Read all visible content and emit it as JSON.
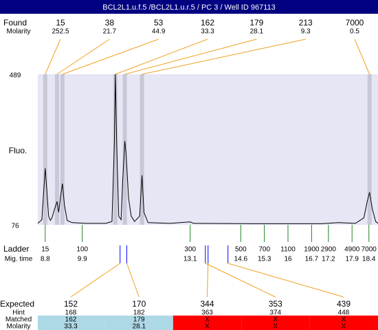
{
  "title": "BCL2L1.u.f.5 /BCL2L1.u.r.5 / PC 3 / Well ID 967113",
  "found": {
    "label": "Found",
    "molarity_label": "Molarity",
    "peaks": [
      {
        "size": 15,
        "molarity": 252.5,
        "time": 8.8
      },
      {
        "size": 38,
        "molarity": 21.7,
        "time": 9.15
      },
      {
        "size": 53,
        "molarity": 44.9,
        "time": 9.31
      },
      {
        "size": 162,
        "molarity": 33.3,
        "time": 10.88
      },
      {
        "size": 179,
        "molarity": 28.1,
        "time": 11.16
      },
      {
        "size": 213,
        "molarity": 9.3,
        "time": 11.67
      },
      {
        "size": 7000,
        "molarity": 0.5,
        "time": 18.42
      }
    ]
  },
  "chart_data": {
    "type": "line",
    "y_label": "Fluo.",
    "color": "#000000",
    "background": "#e6e6f5",
    "ylim": [
      76,
      489
    ],
    "yticks": [
      489,
      76
    ],
    "xlim": [
      8.58,
      18.67
    ],
    "x": [
      8.58,
      8.7,
      8.75,
      8.8,
      8.85,
      8.9,
      8.95,
      9.0,
      9.08,
      9.15,
      9.2,
      9.25,
      9.31,
      9.37,
      9.45,
      9.6,
      10.0,
      10.6,
      10.78,
      10.85,
      10.88,
      10.92,
      10.98,
      11.05,
      11.1,
      11.16,
      11.2,
      11.27,
      11.35,
      11.45,
      11.6,
      11.67,
      11.73,
      11.85,
      12.5,
      13.1,
      13.2,
      15,
      17,
      17.5,
      18.0,
      18.25,
      18.35,
      18.42,
      18.5,
      18.6,
      18.67
    ],
    "values": [
      80,
      90,
      160,
      231,
      170,
      100,
      88,
      95,
      120,
      140,
      110,
      150,
      189,
      130,
      88,
      82,
      80,
      80,
      85,
      300,
      489,
      300,
      100,
      90,
      200,
      306,
      270,
      150,
      100,
      85,
      100,
      212,
      110,
      82,
      80,
      84,
      80,
      79,
      79,
      82,
      80,
      95,
      140,
      165,
      120,
      85,
      80
    ]
  },
  "ladder": {
    "label": "Ladder",
    "time_label": "Mig. time",
    "sizes": [
      15,
      100,
      300,
      500,
      700,
      1100,
      1900,
      2900,
      4900,
      7000
    ],
    "times": [
      8.8,
      9.9,
      13.1,
      14.6,
      15.3,
      16,
      16.7,
      17.2,
      17.9,
      18.4
    ]
  },
  "expected": {
    "label": "Expected",
    "hint_label": "Hint",
    "matched_label": "Matched",
    "molarity_label": "Molarity",
    "matched_color": "#add8e6",
    "unmatched_color": "#ff0000",
    "items": [
      {
        "size": 152,
        "hint": 168,
        "matched": 162,
        "molarity": 33.3,
        "time": 11.02
      },
      {
        "size": 170,
        "hint": 182,
        "matched": 179,
        "molarity": 28.1,
        "time": 11.22
      },
      {
        "size": 344,
        "hint": 363,
        "matched": "X",
        "molarity": "X",
        "time": 13.63
      },
      {
        "size": 353,
        "hint": 374,
        "matched": "X",
        "molarity": "X",
        "time": 13.55
      },
      {
        "size": 439,
        "hint": 448,
        "matched": "X",
        "molarity": "X",
        "time": 14.22
      }
    ]
  }
}
